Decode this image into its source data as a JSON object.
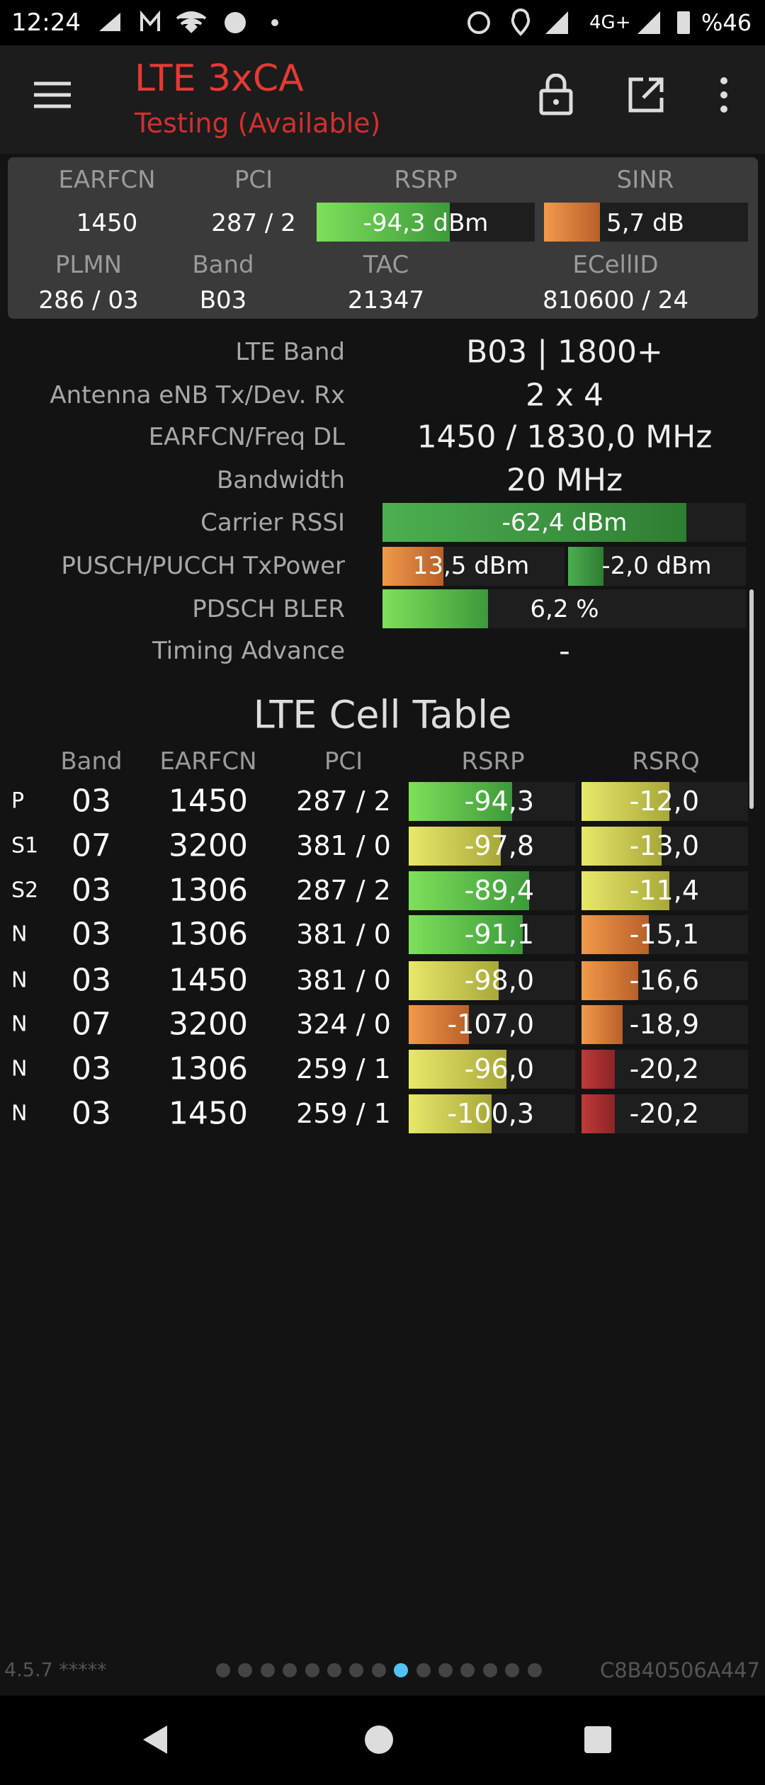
{
  "status_bar": {
    "time": "12:24",
    "network": "4G+",
    "battery": "%46"
  },
  "app_bar": {
    "title": "LTE 3xCA",
    "subtitle": "Testing (Available)"
  },
  "summary": {
    "headers_1": [
      "EARFCN",
      "PCI",
      "RSRP",
      "SINR"
    ],
    "values_1": [
      "1450",
      "287 / 2",
      "-94,3 dBm",
      "5,7 dB"
    ],
    "headers_2": [
      "PLMN",
      "Band",
      "TAC",
      "ECellID"
    ],
    "values_2": [
      "286 / 03",
      "B03",
      "21347",
      "810600 / 24"
    ]
  },
  "details": [
    {
      "label": "LTE Band",
      "value": "B03 | 1800+"
    },
    {
      "label": "Antenna eNB Tx/Dev. Rx",
      "value": "2 x 4"
    },
    {
      "label": "EARFCN/Freq DL",
      "value": "1450 / 1830,0 MHz"
    },
    {
      "label": "Bandwidth",
      "value": "20 MHz"
    },
    {
      "label": "Carrier RSSI",
      "value": "-62,4 dBm"
    },
    {
      "label": "PUSCH/PUCCH TxPower",
      "value": "13,5 dBm",
      "value_2": "-2,0 dBm"
    },
    {
      "label": "PDSCH BLER",
      "value": "6,2 %"
    },
    {
      "label": "Timing Advance",
      "value": "-"
    }
  ],
  "cell_table": {
    "title": "LTE Cell Table",
    "columns": [
      "Band",
      "EARFCN",
      "PCI",
      "RSRP",
      "RSRQ"
    ],
    "rows": [
      [
        "P",
        "03",
        "1450",
        "287 / 2",
        "-94,3",
        "-12,0"
      ],
      [
        "S1",
        "07",
        "3200",
        "381 / 0",
        "-97,8",
        "-13,0"
      ],
      [
        "S2",
        "03",
        "1306",
        "287 / 2",
        "-89,4",
        "-11,4"
      ],
      [
        "N",
        "03",
        "1306",
        "381 / 0",
        "-91,1",
        "-15,1"
      ],
      [
        "N",
        "03",
        "1450",
        "381 / 0",
        "-98,0",
        "-16,6"
      ],
      [
        "N",
        "07",
        "3200",
        "324 / 0",
        "-107,0",
        "-18,9"
      ],
      [
        "N",
        "03",
        "1306",
        "259 / 1",
        "-96,0",
        "-20,2"
      ],
      [
        "N",
        "03",
        "1450",
        "259 / 1",
        "-100,3",
        "-20,2"
      ]
    ]
  },
  "footer": {
    "version": "4.5.7 *****",
    "device_id": "C8B40506A447"
  }
}
